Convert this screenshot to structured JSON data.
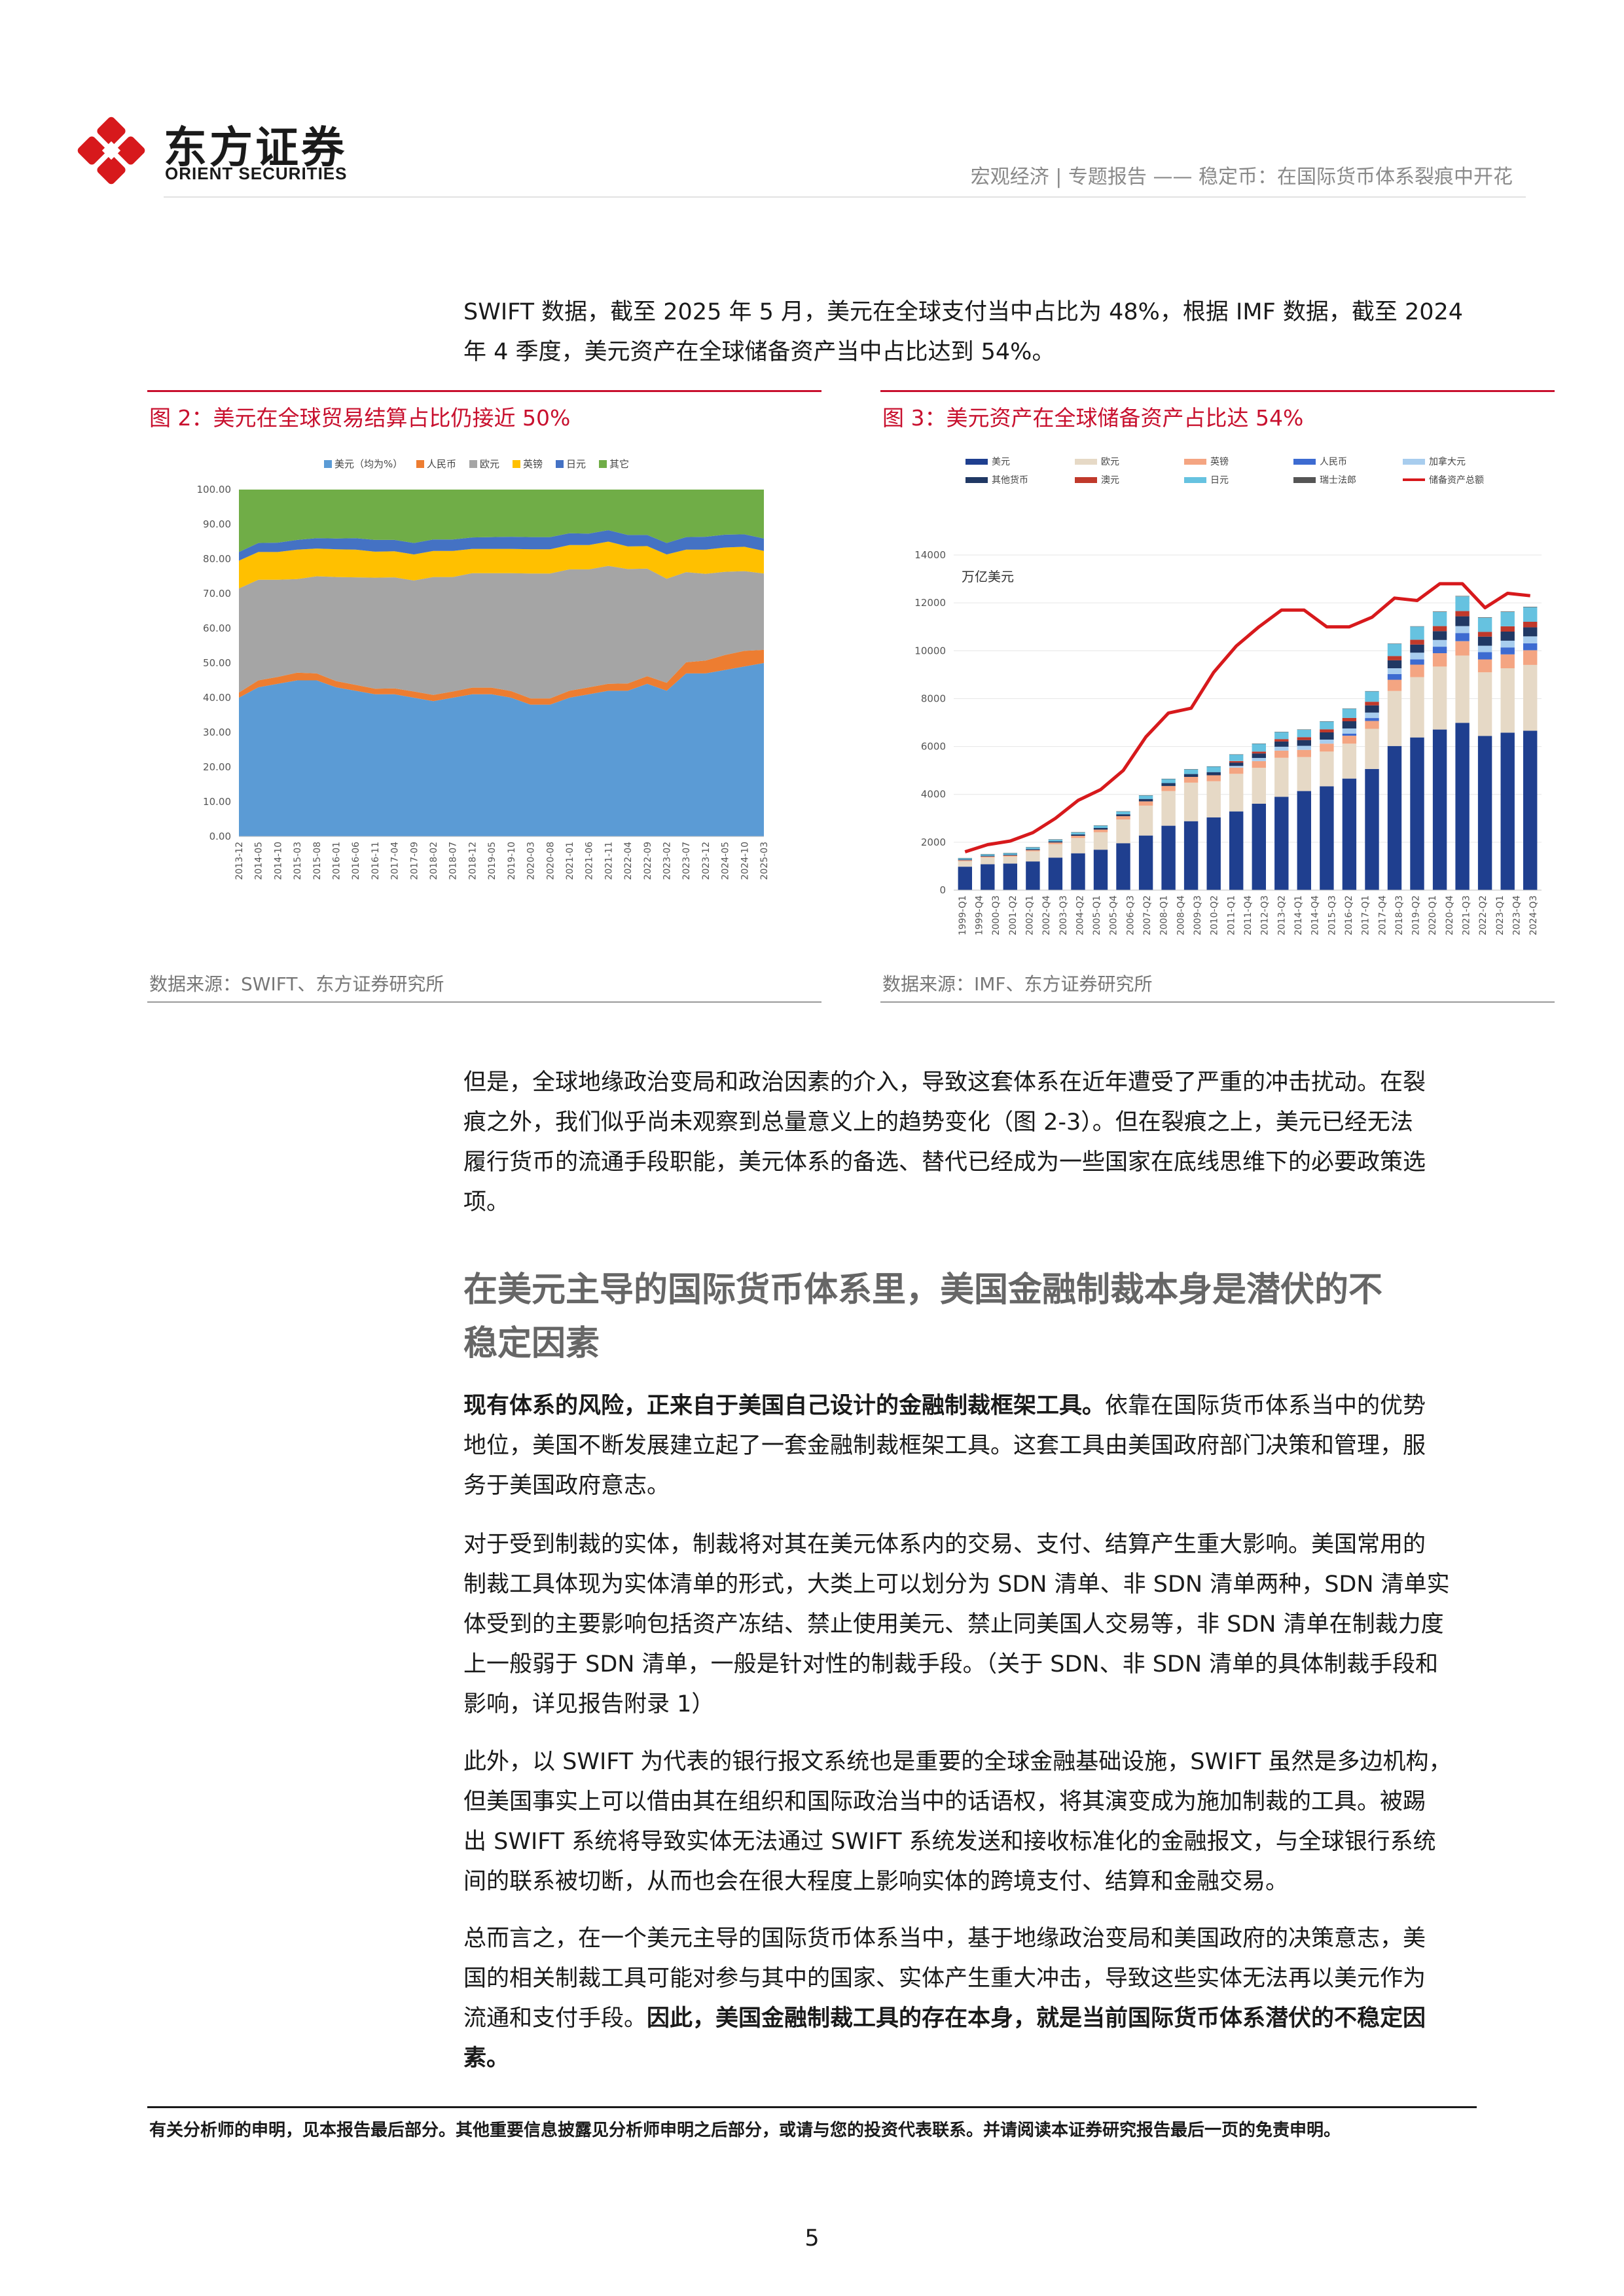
{
  "header": {
    "logo_cn": "东方证券",
    "logo_en": "ORIENT SECURITIES",
    "crumb": "宏观经济 | 专题报告 —— 稳定币：在国际货币体系裂痕中开花"
  },
  "intro": {
    "line1": "SWIFT 数据，截至 2025 年 5 月，美元在全球支付当中占比为 48%，根据 IMF 数据，截至 2024",
    "line2": "年 4 季度，美元资产在全球储备资产当中占比达到 54%。"
  },
  "figure2": {
    "title": "图 2：美元在全球贸易结算占比仍接近 50%",
    "source": "数据来源：SWIFT、东方证券研究所"
  },
  "figure3": {
    "title": "图 3：美元资产在全球储备资产占比达 54%",
    "source": "数据来源：IMF、东方证券研究所"
  },
  "chart_data": [
    {
      "type": "area",
      "stacked": true,
      "legend_position": "top",
      "ylim": [
        0,
        100
      ],
      "yticks": [
        "0.00",
        "10.00",
        "20.00",
        "30.00",
        "40.00",
        "50.00",
        "60.00",
        "70.00",
        "80.00",
        "90.00",
        "100.00"
      ],
      "xtick_labels": [
        "2013-12",
        "2014-05",
        "2014-10",
        "2015-03",
        "2015-08",
        "2016-01",
        "2016-06",
        "2016-11",
        "2017-04",
        "2017-09",
        "2018-02",
        "2018-07",
        "2018-12",
        "2019-05",
        "2019-10",
        "2020-03",
        "2020-08",
        "2021-01",
        "2021-06",
        "2021-11",
        "2022-04",
        "2022-09",
        "2023-02",
        "2023-07",
        "2023-12",
        "2024-05",
        "2024-10",
        "2025-03"
      ],
      "series": [
        {
          "name": "美元（均为%）",
          "color": "#5b9bd5",
          "values": [
            40,
            43,
            44,
            45,
            45,
            43,
            42,
            41,
            41,
            40,
            39,
            40,
            41,
            41,
            40,
            38,
            38,
            40,
            41,
            42,
            42,
            44,
            42,
            47,
            47,
            48,
            49,
            50
          ]
        },
        {
          "name": "人民币",
          "color": "#ed7d31",
          "values": [
            1.5,
            2,
            2,
            2.2,
            2,
            1.8,
            1.7,
            1.6,
            1.7,
            1.8,
            1.8,
            1.8,
            1.9,
            1.9,
            1.9,
            1.8,
            1.8,
            2,
            2,
            2,
            2.1,
            2.2,
            2.3,
            3.2,
            3.7,
            4.3,
            4.5,
            3.8
          ]
        },
        {
          "name": "欧元",
          "color": "#a5a5a5",
          "values": [
            30,
            29,
            28,
            27,
            28,
            30,
            31,
            32,
            32,
            32,
            34,
            33,
            33,
            33,
            34,
            36,
            36,
            35,
            34,
            34,
            33,
            31,
            30,
            26,
            25,
            24,
            23,
            22
          ]
        },
        {
          "name": "英镑",
          "color": "#ffc000",
          "values": [
            8,
            8,
            8,
            8.5,
            8,
            8,
            8,
            7.5,
            7.5,
            7.5,
            7.5,
            7.5,
            7,
            7,
            7,
            7,
            7,
            7,
            7,
            7,
            6.5,
            6.5,
            7,
            6.5,
            7,
            7,
            7,
            6.5
          ]
        },
        {
          "name": "日元",
          "color": "#4472c4",
          "values": [
            2.5,
            2.6,
            2.7,
            2.8,
            3,
            3.1,
            3.3,
            3.4,
            3.3,
            3.3,
            3.3,
            3.3,
            3.3,
            3.4,
            3.5,
            3.5,
            3.5,
            3.4,
            3.3,
            3.3,
            3.3,
            3.2,
            3.3,
            3.6,
            3.7,
            3.7,
            3.6,
            3.6
          ]
        },
        {
          "name": "其它",
          "color": "#70ad47",
          "values": [
            18,
            15.4,
            15.3,
            14.5,
            14,
            14.1,
            14,
            14.5,
            14.5,
            15.4,
            14.4,
            14.4,
            13.8,
            13.7,
            13.6,
            13.7,
            13.7,
            12.6,
            12.7,
            11.7,
            13.1,
            13.1,
            15.4,
            13.7,
            13.6,
            13,
            12.9,
            14.1
          ]
        }
      ]
    },
    {
      "type": "bar",
      "stacked": true,
      "legend_position": "top",
      "unit_label": "万亿美元",
      "ylim": [
        0,
        14000
      ],
      "yticks": [
        "0",
        "2000",
        "4000",
        "6000",
        "8000",
        "10000",
        "12000",
        "14000"
      ],
      "xtick_labels": [
        "1999-Q1",
        "1999-Q4",
        "2000-Q3",
        "2001-Q2",
        "2002-Q1",
        "2002-Q4",
        "2003-Q3",
        "2004-Q2",
        "2005-Q1",
        "2005-Q4",
        "2006-Q3",
        "2007-Q2",
        "2008-Q1",
        "2008-Q4",
        "2009-Q3",
        "2010-Q2",
        "2011-Q1",
        "2011-Q4",
        "2012-Q3",
        "2013-Q2",
        "2014-Q1",
        "2014-Q4",
        "2015-Q3",
        "2016-Q2",
        "2017-Q1",
        "2017-Q4",
        "2018-Q3",
        "2019-Q2",
        "2020-Q1",
        "2020-Q4",
        "2021-Q3",
        "2022-Q2",
        "2023-Q1",
        "2023-Q4",
        "2024-Q3"
      ],
      "x": [
        "1999",
        "2000",
        "2001",
        "2002",
        "2003",
        "2004",
        "2005",
        "2006",
        "2007",
        "2008",
        "2009",
        "2010",
        "2011",
        "2012",
        "2013",
        "2014",
        "2015",
        "2016",
        "2017",
        "2018",
        "2019",
        "2020",
        "2021",
        "2022",
        "2023",
        "2024"
      ],
      "series": [
        {
          "name": "美元",
          "color": "#1f3f8f",
          "values": [
            980,
            1080,
            1110,
            1200,
            1360,
            1540,
            1690,
            1960,
            2280,
            2690,
            2880,
            3040,
            3290,
            3610,
            3900,
            4140,
            4340,
            4660,
            5060,
            6020,
            6380,
            6710,
            6990,
            6440,
            6580,
            6660
          ]
        },
        {
          "name": "欧元",
          "color": "#e6d9c6",
          "values": [
            230,
            280,
            290,
            420,
            560,
            640,
            730,
            990,
            1250,
            1450,
            1610,
            1510,
            1570,
            1500,
            1630,
            1420,
            1450,
            1460,
            1680,
            2300,
            2520,
            2630,
            2810,
            2660,
            2690,
            2750
          ]
        },
        {
          "name": "英镑",
          "color": "#f4a582",
          "values": [
            40,
            45,
            50,
            55,
            70,
            90,
            110,
            140,
            180,
            210,
            240,
            250,
            260,
            280,
            300,
            300,
            330,
            330,
            330,
            470,
            520,
            560,
            600,
            540,
            580,
            610
          ]
        },
        {
          "name": "人民币",
          "color": "#3d6bd1",
          "values": [
            0,
            0,
            0,
            0,
            0,
            0,
            0,
            0,
            0,
            0,
            0,
            0,
            0,
            0,
            0,
            0,
            0,
            84,
            120,
            240,
            220,
            270,
            340,
            300,
            290,
            290
          ]
        },
        {
          "name": "加拿大元",
          "color": "#a8cdee",
          "values": [
            0,
            0,
            0,
            0,
            0,
            0,
            0,
            0,
            0,
            0,
            0,
            0,
            70,
            130,
            160,
            170,
            170,
            220,
            230,
            240,
            280,
            280,
            290,
            270,
            280,
            290
          ]
        },
        {
          "name": "其他货币",
          "color": "#203864",
          "values": [
            30,
            30,
            30,
            40,
            50,
            60,
            70,
            80,
            100,
            120,
            120,
            130,
            140,
            190,
            220,
            240,
            300,
            300,
            300,
            330,
            340,
            370,
            410,
            380,
            380,
            380
          ]
        },
        {
          "name": "澳元",
          "color": "#c0392b",
          "values": [
            0,
            0,
            0,
            0,
            0,
            0,
            0,
            0,
            0,
            0,
            0,
            0,
            60,
            80,
            100,
            120,
            130,
            140,
            150,
            180,
            200,
            210,
            220,
            200,
            220,
            230
          ]
        },
        {
          "name": "日元",
          "color": "#66c2e0",
          "values": [
            60,
            70,
            70,
            80,
            80,
            90,
            100,
            120,
            150,
            180,
            200,
            240,
            280,
            330,
            300,
            320,
            330,
            390,
            430,
            510,
            550,
            590,
            610,
            590,
            600,
            610
          ]
        },
        {
          "name": "瑞士法郎",
          "color": "#555555",
          "values": [
            2,
            2,
            2,
            2,
            2,
            2,
            2,
            2,
            2,
            2,
            2,
            2,
            2,
            2,
            2,
            2,
            2,
            2,
            15,
            15,
            15,
            20,
            20,
            20,
            20,
            20
          ]
        }
      ],
      "line_series": {
        "name": "储备资产总额",
        "color": "#d7191c",
        "values": [
          1600,
          1900,
          2050,
          2400,
          3000,
          3750,
          4200,
          5000,
          6400,
          7400,
          7600,
          9100,
          10200,
          11000,
          11700,
          11700,
          11000,
          11000,
          11400,
          12200,
          12100,
          12800,
          12800,
          11800,
          12400,
          12300
        ]
      }
    }
  ],
  "para2": {
    "line1": "但是，全球地缘政治变局和政治因素的介入，导致这套体系在近年遭受了严重的冲击扰动。在裂",
    "line2": "痕之外，我们似乎尚未观察到总量意义上的趋势变化（图 2-3）。但在裂痕之上，美元已经无法",
    "line3": "履行货币的流通手段职能，美元体系的备选、替代已经成为一些国家在底线思维下的必要政策选",
    "line4": "项。"
  },
  "section": {
    "title_line1": "在美元主导的国际货币体系里，美国金融制裁本身是潜伏的不",
    "title_line2": "稳定因素"
  },
  "para3": {
    "bold": "现有体系的风险，正来自于美国自己设计的金融制裁框架工具。",
    "rest1": "依靠在国际货币体系当中的优势",
    "line2": "地位，美国不断发展建立起了一套金融制裁框架工具。这套工具由美国政府部门决策和管理，服",
    "line3": "务于美国政府意志。"
  },
  "para4": {
    "line1": "对于受到制裁的实体，制裁将对其在美元体系内的交易、支付、结算产生重大影响。美国常用的",
    "line2": "制裁工具体现为实体清单的形式，大类上可以划分为 SDN 清单、非 SDN 清单两种，SDN 清单实",
    "line3": "体受到的主要影响包括资产冻结、禁止使用美元、禁止同美国人交易等，非 SDN 清单在制裁力度",
    "line4": "上一般弱于 SDN 清单，一般是针对性的制裁手段。（关于 SDN、非 SDN 清单的具体制裁手段和",
    "line5": "影响，详见报告附录 1）"
  },
  "para5": {
    "line1": "此外，以 SWIFT 为代表的银行报文系统也是重要的全球金融基础设施，SWIFT 虽然是多边机构，",
    "line2": "但美国事实上可以借由其在组织和国际政治当中的话语权，将其演变成为施加制裁的工具。被踢",
    "line3": "出 SWIFT 系统将导致实体无法通过 SWIFT 系统发送和接收标准化的金融报文，与全球银行系统",
    "line4": "间的联系被切断，从而也会在很大程度上影响实体的跨境支付、结算和金融交易。"
  },
  "para6": {
    "line1": "总而言之，在一个美元主导的国际货币体系当中，基于地缘政治变局和美国政府的决策意志，美",
    "line2": "国的相关制裁工具可能对参与其中的国家、实体产生重大冲击，导致这些实体无法再以美元作为",
    "line3_plain": "流通和支付手段。",
    "line3_bold": "因此，美国金融制裁工具的存在本身，就是当前国际货币体系潜伏的不稳定因",
    "line4_bold": "素。"
  },
  "footer": {
    "disclaimer": "有关分析师的申明，见本报告最后部分。其他重要信息披露见分析师申明之后部分，或请与您的投资代表联系。并请阅读本证券研究报告最后一页的免责申明。",
    "page": "5"
  }
}
